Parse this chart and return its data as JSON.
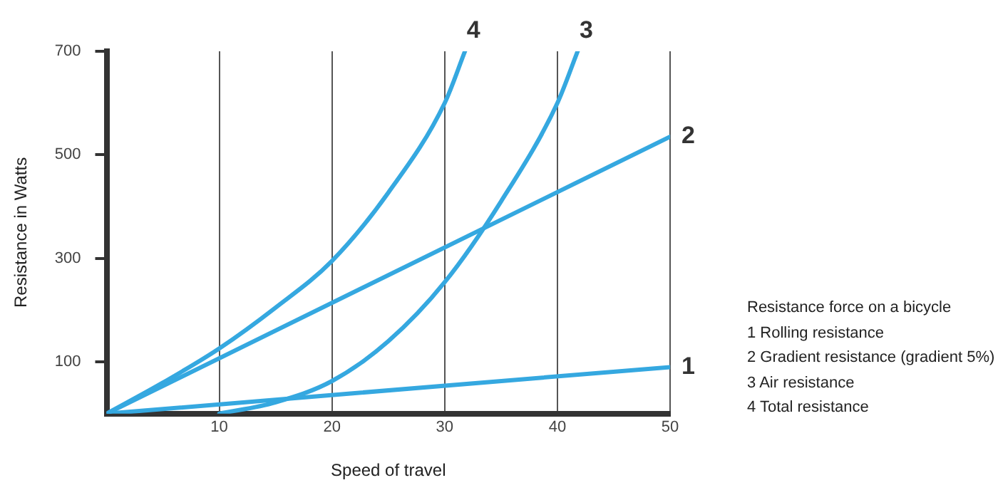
{
  "chart_data": {
    "type": "line",
    "xlabel": "Speed of travel",
    "ylabel": "Resistance in Watts",
    "xlim": [
      0,
      50
    ],
    "xticks": [
      10,
      20,
      30,
      40,
      50
    ],
    "ylim": [
      0,
      700
    ],
    "yticks": [
      100,
      300,
      500,
      700
    ],
    "grid": "x",
    "legend": false,
    "marker": "none",
    "line_style": "solid",
    "series": [
      {
        "name": "1",
        "color": "#35a8e0",
        "x": [
          0,
          50
        ],
        "values": [
          0,
          90
        ]
      },
      {
        "name": "2",
        "color": "#35a8e0",
        "x": [
          0,
          50
        ],
        "values": [
          0,
          535
        ]
      },
      {
        "name": "3",
        "color": "#35a8e0",
        "x": [
          10,
          15,
          20,
          25,
          30,
          35,
          40,
          41.8
        ],
        "values": [
          0,
          22,
          63,
          140,
          254,
          410,
          600,
          700
        ]
      },
      {
        "name": "4",
        "color": "#35a8e0",
        "x": [
          0,
          5,
          10,
          15,
          20,
          25,
          30,
          31.8
        ],
        "values": [
          0,
          60,
          126,
          205,
          295,
          427,
          600,
          700
        ]
      }
    ],
    "annotations": [
      "Resistance force on a bicycle",
      "1 Rolling resistance",
      "2 Gradient resistance (gradient 5%)",
      "3 Air resistance",
      "4 Total resistance"
    ]
  }
}
